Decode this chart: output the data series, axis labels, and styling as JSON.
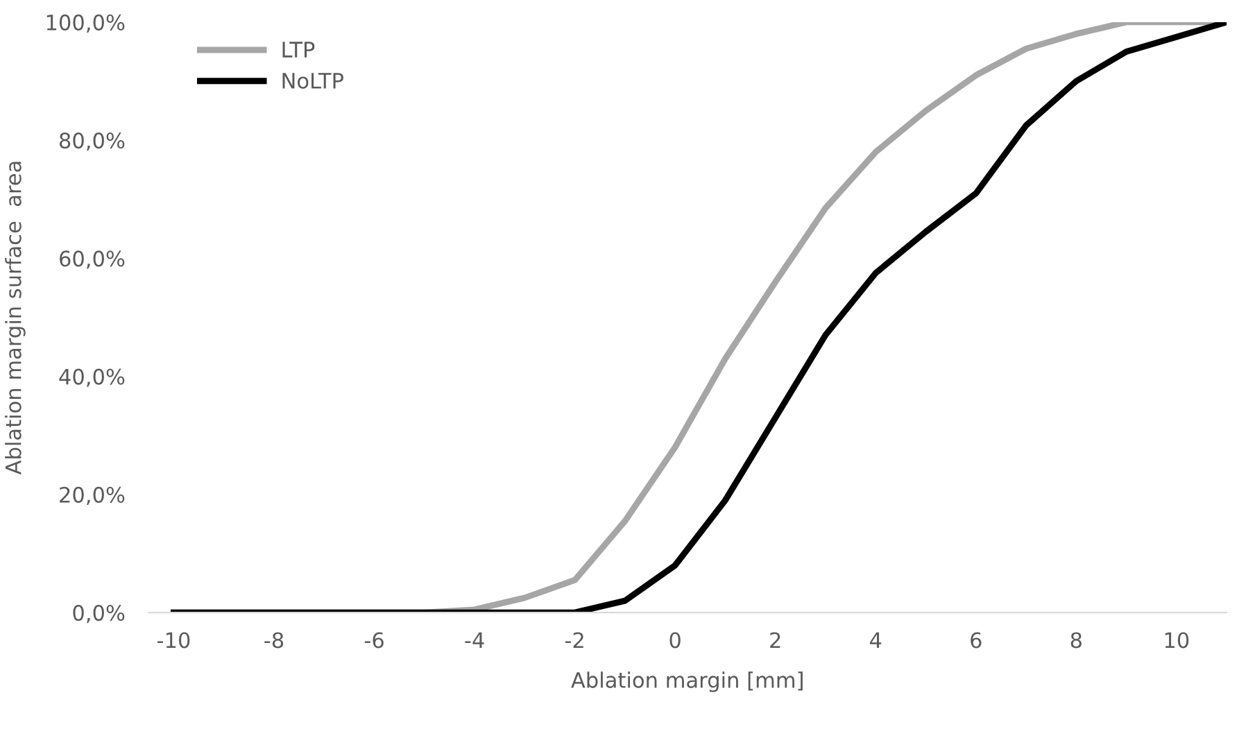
{
  "chart_data": {
    "type": "line",
    "xlabel": "Ablation margin [mm]",
    "ylabel": "Ablation margin surface  area",
    "x": [
      -10,
      -9,
      -8,
      -7,
      -6,
      -5,
      -4,
      -3,
      -2,
      -1,
      0,
      1,
      2,
      3,
      4,
      5,
      6,
      7,
      8,
      9,
      10,
      11
    ],
    "series": [
      {
        "name": "LTP",
        "color": "#a6a6a6",
        "values": [
          0,
          0,
          0,
          0,
          0,
          0,
          0.5,
          2.5,
          5.5,
          15.5,
          28,
          43,
          56,
          68.5,
          78,
          85,
          91,
          95.5,
          98,
          100,
          100,
          100
        ]
      },
      {
        "name": "NoLTP",
        "color": "#000000",
        "values": [
          0,
          0,
          0,
          0,
          0,
          0,
          0,
          0,
          0,
          2,
          8,
          19,
          33,
          47,
          57.5,
          64.5,
          71,
          82.5,
          90,
          95,
          97.5,
          100
        ]
      }
    ],
    "xlim": [
      -10.5,
      11
    ],
    "xticks": [
      -10,
      -8,
      -6,
      -4,
      -2,
      0,
      2,
      4,
      6,
      8,
      10
    ],
    "ylim": [
      0,
      100
    ],
    "yticks": [
      {
        "value": 0,
        "label": "0,0%"
      },
      {
        "value": 20,
        "label": "20,0%"
      },
      {
        "value": 40,
        "label": "40,0%"
      },
      {
        "value": 60,
        "label": "60,0%"
      },
      {
        "value": 80,
        "label": "80,0%"
      },
      {
        "value": 100,
        "label": "100,0%"
      }
    ],
    "grid": false,
    "legend": "top left",
    "marker": "none",
    "line_style": "solid"
  }
}
